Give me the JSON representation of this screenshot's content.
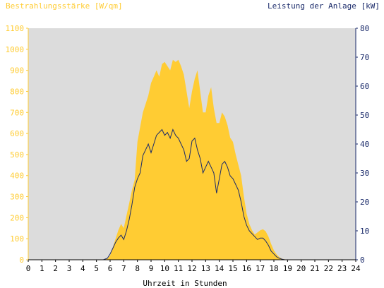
{
  "chart_data": {
    "type": "area",
    "title_left": "Bestrahlungsstärke [W/qm]",
    "title_right": "Leistung der Anlage [kW]",
    "xlabel": "Uhrzeit in Stunden",
    "x_ticks": [
      "0",
      "1",
      "2",
      "3",
      "4",
      "5",
      "6",
      "7",
      "8",
      "9",
      "10",
      "11",
      "12",
      "13",
      "14",
      "15",
      "16",
      "17",
      "18",
      "19",
      "20",
      "21",
      "22",
      "23",
      "24"
    ],
    "xlim": [
      0,
      24
    ],
    "y_left": {
      "lim": [
        0,
        1100
      ],
      "ticks": [
        "0",
        "100",
        "200",
        "300",
        "400",
        "500",
        "600",
        "700",
        "800",
        "900",
        "1000",
        "1100"
      ]
    },
    "y_right": {
      "lim": [
        0,
        80
      ],
      "ticks": [
        "0",
        "10",
        "20",
        "30",
        "40",
        "50",
        "60",
        "70",
        "80"
      ]
    },
    "grid": false,
    "colors": {
      "plot_bg": "#dcdcdc",
      "irradiance_fill": "#ffcc33",
      "power_line": "#1a2a6a",
      "left_axis": "#ffcc33",
      "right_axis": "#1a2a6a",
      "text_dark": "#000000"
    },
    "series": [
      {
        "axis": "left",
        "x": [
          0,
          5.5,
          5.8,
          6.0,
          6.2,
          6.4,
          6.6,
          6.8,
          7.0,
          7.2,
          7.4,
          7.6,
          7.8,
          8.0,
          8.2,
          8.4,
          8.6,
          8.8,
          9.0,
          9.2,
          9.4,
          9.6,
          9.8,
          10.0,
          10.2,
          10.4,
          10.6,
          10.8,
          11.0,
          11.2,
          11.4,
          11.6,
          11.8,
          12.0,
          12.2,
          12.4,
          12.6,
          12.8,
          13.0,
          13.2,
          13.4,
          13.6,
          13.8,
          14.0,
          14.2,
          14.4,
          14.6,
          14.8,
          15.0,
          15.2,
          15.4,
          15.6,
          15.8,
          16.0,
          16.2,
          16.4,
          16.6,
          16.8,
          17.0,
          17.2,
          17.4,
          17.6,
          17.8,
          18.0,
          18.2,
          18.4,
          18.6,
          18.8,
          19.0,
          19.5,
          24
        ],
        "values": [
          0,
          0,
          5,
          20,
          60,
          100,
          140,
          170,
          150,
          210,
          270,
          330,
          380,
          560,
          630,
          700,
          740,
          780,
          840,
          870,
          900,
          870,
          930,
          940,
          920,
          900,
          950,
          940,
          950,
          920,
          880,
          800,
          720,
          800,
          860,
          900,
          800,
          700,
          700,
          780,
          820,
          720,
          650,
          650,
          700,
          680,
          640,
          580,
          560,
          500,
          450,
          400,
          300,
          220,
          170,
          140,
          120,
          130,
          140,
          145,
          135,
          110,
          75,
          45,
          25,
          12,
          5,
          2,
          0,
          0,
          0
        ]
      },
      {
        "axis": "right",
        "x": [
          0,
          5.5,
          5.8,
          6.0,
          6.2,
          6.4,
          6.6,
          6.8,
          7.0,
          7.2,
          7.4,
          7.6,
          7.8,
          8.0,
          8.2,
          8.4,
          8.6,
          8.8,
          9.0,
          9.2,
          9.4,
          9.6,
          9.8,
          10.0,
          10.2,
          10.4,
          10.6,
          10.8,
          11.0,
          11.2,
          11.4,
          11.6,
          11.8,
          12.0,
          12.2,
          12.4,
          12.6,
          12.8,
          13.0,
          13.2,
          13.4,
          13.6,
          13.8,
          14.0,
          14.2,
          14.4,
          14.6,
          14.8,
          15.0,
          15.2,
          15.4,
          15.6,
          15.8,
          16.0,
          16.2,
          16.4,
          16.6,
          16.8,
          17.0,
          17.2,
          17.4,
          17.6,
          17.8,
          18.0,
          18.2,
          18.4,
          18.6,
          18.8,
          19.0,
          19.5,
          24
        ],
        "values": [
          0,
          0,
          0.5,
          2,
          4,
          6,
          7.5,
          8.5,
          7,
          10,
          14,
          19,
          25,
          28,
          30,
          36,
          38,
          40,
          37,
          40,
          43,
          44,
          45,
          43,
          44,
          42,
          45,
          43,
          42,
          40,
          38,
          34,
          35,
          41,
          42,
          38,
          35,
          30,
          32,
          34,
          32,
          30,
          23,
          28,
          33,
          34,
          32,
          29,
          28,
          26,
          24,
          20,
          15,
          12,
          10,
          9,
          8,
          7,
          7.5,
          7.5,
          6.5,
          5,
          3,
          2,
          1,
          0.5,
          0.2,
          0,
          0,
          0,
          0
        ]
      }
    ]
  }
}
